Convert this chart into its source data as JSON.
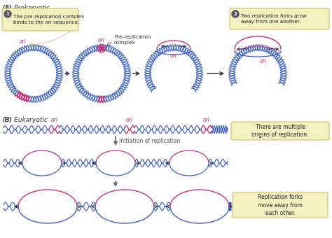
{
  "title_a": "(A) Prokaryotic",
  "title_b": "(B) Eukaryotic",
  "bg_color": "#ffffff",
  "dna_blue": "#3a5fcd",
  "dna_pink": "#cc3377",
  "arrow_color": "#222222",
  "callout_bg": "#f5f0c0",
  "callout_border": "#c8b850",
  "text1_num": "1",
  "text1_body": "The pre-replication complex\nbinds to the ori sequence.",
  "text2_num": "2",
  "text2_body": "Two replication forks grow\naway from one another.",
  "label_ori": "ori",
  "label_pre_line1": "Pre-replication",
  "label_pre_line2": "complex",
  "label_initiation": "Initiation of replication",
  "text3": "There are multiple\norigins of replication.",
  "text4": "Replication forks\nmove away from\neach other."
}
